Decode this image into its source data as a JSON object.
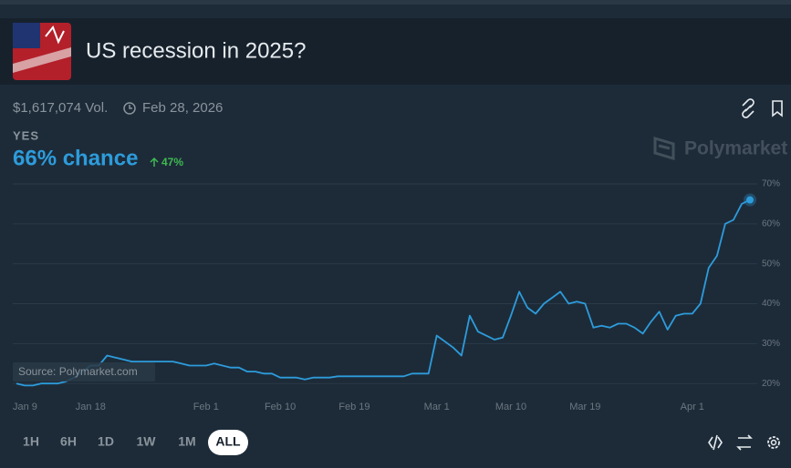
{
  "header": {
    "title": "US recession in 2025?",
    "volume": "$1,617,074 Vol.",
    "end_date": "Feb 28, 2026"
  },
  "outcome": {
    "label": "YES",
    "chance": "66% chance",
    "change": "47%"
  },
  "watermark": "Polymarket",
  "source": "Source: Polymarket.com",
  "ranges": [
    "1H",
    "6H",
    "1D",
    "1W",
    "1M",
    "ALL"
  ],
  "selected_range": "ALL",
  "chart_data": {
    "type": "line",
    "x": [
      "Jan 9",
      "Jan 10",
      "Jan 11",
      "Jan 12",
      "Jan 13",
      "Jan 14",
      "Jan 15",
      "Jan 16",
      "Jan 17",
      "Jan 18",
      "Jan 19",
      "Jan 20",
      "Jan 21",
      "Jan 22",
      "Jan 23",
      "Jan 24",
      "Jan 25",
      "Jan 26",
      "Jan 27",
      "Jan 28",
      "Jan 29",
      "Jan 30",
      "Jan 31",
      "Feb 1",
      "Feb 2",
      "Feb 3",
      "Feb 4",
      "Feb 5",
      "Feb 6",
      "Feb 7",
      "Feb 8",
      "Feb 9",
      "Feb 10",
      "Feb 11",
      "Feb 12",
      "Feb 13",
      "Feb 14",
      "Feb 15",
      "Feb 16",
      "Feb 17",
      "Feb 18",
      "Feb 19",
      "Feb 20",
      "Feb 21",
      "Feb 22",
      "Feb 23",
      "Feb 24",
      "Feb 25",
      "Feb 26",
      "Feb 27",
      "Feb 28",
      "Mar 1",
      "Mar 2",
      "Mar 3",
      "Mar 4",
      "Mar 5",
      "Mar 6",
      "Mar 7",
      "Mar 8",
      "Mar 9",
      "Mar 10",
      "Mar 11",
      "Mar 12",
      "Mar 13",
      "Mar 14",
      "Mar 15",
      "Mar 16",
      "Mar 17",
      "Mar 18",
      "Mar 19",
      "Mar 20",
      "Mar 21",
      "Mar 22",
      "Mar 23",
      "Mar 24",
      "Mar 25",
      "Mar 26",
      "Mar 27",
      "Mar 28",
      "Mar 29",
      "Mar 30",
      "Mar 31",
      "Apr 1",
      "Apr 2",
      "Apr 3",
      "Apr 4",
      "Apr 5",
      "Apr 6",
      "Apr 7",
      "Apr 8"
    ],
    "series": [
      {
        "name": "YES",
        "color": "#2d9cdb",
        "values": [
          20,
          19.5,
          19.5,
          20,
          20,
          20,
          20.5,
          21.5,
          23,
          24.5,
          24.5,
          27,
          26.5,
          26,
          25.5,
          25.5,
          25.5,
          25.5,
          25.5,
          25.5,
          25,
          24.5,
          24.5,
          24.5,
          25,
          24.5,
          24,
          24,
          23,
          23,
          22.5,
          22.5,
          21.5,
          21.5,
          21.5,
          21,
          21.5,
          21.5,
          21.5,
          21.8,
          21.8,
          21.8,
          21.8,
          21.8,
          21.8,
          21.8,
          21.8,
          21.8,
          22.5,
          22.5,
          22.5,
          32,
          30.5,
          29,
          27,
          37,
          33,
          32,
          31,
          31.5,
          37,
          43,
          39,
          37.5,
          40,
          41.5,
          43,
          40,
          40.5,
          40,
          34,
          34.5,
          34,
          35,
          35,
          34,
          32.5,
          35.5,
          38,
          33.5,
          37,
          37.5,
          37.5,
          40,
          49,
          52,
          60,
          61,
          65,
          66
        ]
      }
    ],
    "xticks": [
      "Jan 9",
      "Jan 18",
      "Feb 1",
      "Feb 10",
      "Feb 19",
      "Mar 1",
      "Mar 10",
      "Mar 19",
      "Apr 1"
    ],
    "ylim": [
      18,
      70
    ],
    "yticks": [
      {
        "value": 20,
        "label": "20%"
      },
      {
        "value": 30,
        "label": "30%"
      },
      {
        "value": 40,
        "label": "40%"
      },
      {
        "value": 50,
        "label": "50%"
      },
      {
        "value": 60,
        "label": "60%"
      },
      {
        "value": 70,
        "label": "70%"
      }
    ],
    "grid": true
  }
}
